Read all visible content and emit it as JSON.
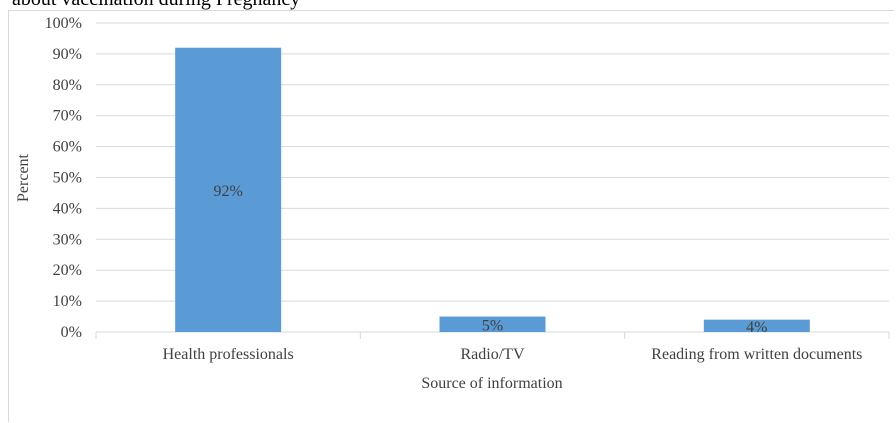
{
  "caption_fragment": "about vaccination during Pregnancy",
  "chart_data": {
    "type": "bar",
    "categories": [
      "Health professionals",
      "Radio/TV",
      "Reading from written documents"
    ],
    "values": [
      92,
      5,
      4
    ],
    "data_labels": [
      "92%",
      "5%",
      "4%"
    ],
    "xlabel": "Source of information",
    "ylabel": "Percent",
    "ylim": [
      0,
      100
    ],
    "yticks": [
      0,
      10,
      20,
      30,
      40,
      50,
      60,
      70,
      80,
      90,
      100
    ],
    "ytick_labels": [
      "0%",
      "10%",
      "20%",
      "30%",
      "40%",
      "50%",
      "60%",
      "70%",
      "80%",
      "90%",
      "100%"
    ],
    "grid": true,
    "legend": "none",
    "bar_color": "#5b9bd5",
    "grid_color": "#d9d9d9"
  }
}
